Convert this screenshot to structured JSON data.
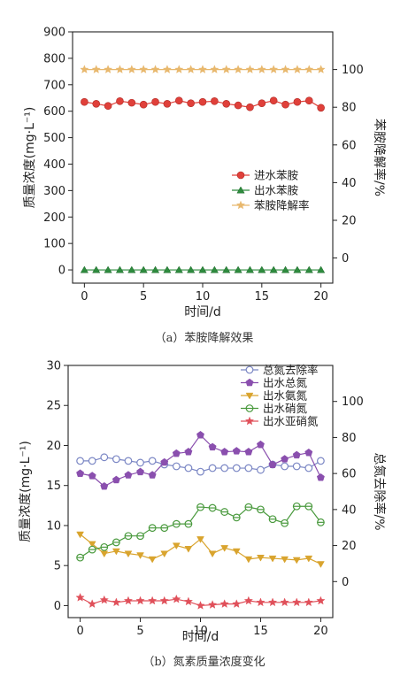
{
  "chart_data": [
    {
      "type": "line",
      "caption": "（a）苯胺降解效果",
      "xlabel": "时间/d",
      "ylabel_left": "质量浓度(mg·L⁻¹)",
      "ylabel_right": "苯胺降解率/%",
      "x_ticks": [
        0,
        5,
        10,
        15,
        20
      ],
      "xlim": [
        -1,
        21
      ],
      "left_ylim": [
        -50,
        900
      ],
      "left_ticks": [
        0,
        100,
        200,
        300,
        400,
        500,
        600,
        700,
        800,
        900
      ],
      "right_ylim": [
        -13.333,
        120
      ],
      "right_ticks": [
        0,
        20,
        40,
        60,
        80,
        100
      ],
      "legend_position": "middle-right",
      "series": [
        {
          "name": "进水苯胺",
          "axis": "left",
          "marker": "circle",
          "color": "#e0403a",
          "x": [
            0,
            1,
            2,
            3,
            4,
            5,
            6,
            7,
            8,
            9,
            10,
            11,
            12,
            13,
            14,
            15,
            16,
            17,
            18,
            19,
            20
          ],
          "values": [
            635,
            628,
            620,
            638,
            632,
            625,
            635,
            628,
            640,
            630,
            635,
            638,
            628,
            622,
            615,
            630,
            640,
            625,
            635,
            640,
            613
          ]
        },
        {
          "name": "出水苯胺",
          "axis": "left",
          "marker": "triangle",
          "color": "#2e8b3e",
          "x": [
            0,
            1,
            2,
            3,
            4,
            5,
            6,
            7,
            8,
            9,
            10,
            11,
            12,
            13,
            14,
            15,
            16,
            17,
            18,
            19,
            20
          ],
          "values": [
            0,
            0,
            0,
            0,
            0,
            0,
            0,
            0,
            0,
            0,
            0,
            0,
            0,
            0,
            0,
            0,
            0,
            0,
            0,
            0,
            0
          ]
        },
        {
          "name": "苯胺降解率",
          "axis": "right",
          "marker": "star",
          "color": "#e8b86d",
          "x": [
            0,
            1,
            2,
            3,
            4,
            5,
            6,
            7,
            8,
            9,
            10,
            11,
            12,
            13,
            14,
            15,
            16,
            17,
            18,
            19,
            20
          ],
          "values": [
            100,
            100,
            100,
            100,
            100,
            100,
            100,
            100,
            100,
            100,
            100,
            100,
            100,
            100,
            100,
            100,
            100,
            100,
            100,
            100,
            100
          ]
        }
      ]
    },
    {
      "type": "line",
      "caption": "（b）氮素质量浓度变化",
      "xlabel": "时间/d",
      "ylabel_left": "质量浓度(mg·L⁻¹)",
      "ylabel_right": "总氮去除率/%",
      "x_ticks": [
        0,
        5,
        10,
        15,
        20
      ],
      "xlim": [
        -1,
        21
      ],
      "left_ylim": [
        -1.5,
        30
      ],
      "left_ticks": [
        0,
        5,
        10,
        15,
        20,
        25,
        30
      ],
      "right_ylim": [
        -20,
        120
      ],
      "right_ticks": [
        0,
        20,
        40,
        60,
        80,
        100
      ],
      "legend_position": "top-right",
      "series": [
        {
          "name": "总氮去除率",
          "axis": "right",
          "marker": "circle-open",
          "color": "#7a86c4",
          "x": [
            0,
            1,
            2,
            3,
            4,
            5,
            6,
            7,
            8,
            9,
            10,
            11,
            12,
            13,
            14,
            15,
            16,
            17,
            18,
            19,
            20
          ],
          "values": [
            67,
            67,
            69,
            68,
            67,
            66,
            67,
            65,
            64,
            63,
            61,
            63,
            63,
            63,
            63,
            62,
            65,
            64,
            64,
            63,
            67
          ]
        },
        {
          "name": "出水总氮",
          "axis": "left",
          "marker": "pentagon",
          "color": "#8a4fae",
          "x": [
            0,
            1,
            2,
            3,
            4,
            5,
            6,
            7,
            8,
            9,
            10,
            11,
            12,
            13,
            14,
            15,
            16,
            17,
            18,
            19,
            20
          ],
          "values": [
            16.5,
            16.2,
            14.9,
            15.7,
            16.3,
            16.7,
            16.3,
            17.9,
            19.0,
            19.2,
            21.3,
            19.8,
            19.2,
            19.3,
            19.2,
            20.1,
            17.6,
            18.3,
            18.8,
            19.1,
            16.0
          ]
        },
        {
          "name": "出水氨氮",
          "axis": "left",
          "marker": "triangle-down",
          "color": "#d9a42e",
          "x": [
            0,
            1,
            2,
            3,
            4,
            5,
            6,
            7,
            8,
            9,
            10,
            11,
            12,
            13,
            14,
            15,
            16,
            17,
            18,
            19,
            20
          ],
          "values": [
            8.9,
            7.7,
            6.5,
            6.8,
            6.5,
            6.3,
            5.8,
            6.5,
            7.5,
            7.1,
            8.3,
            6.5,
            7.2,
            6.8,
            5.8,
            6.0,
            5.9,
            5.8,
            5.7,
            5.9,
            5.2
          ]
        },
        {
          "name": "出水硝氮",
          "axis": "left",
          "marker": "circle-half",
          "color": "#4a9a3e",
          "x": [
            0,
            1,
            2,
            3,
            4,
            5,
            6,
            7,
            8,
            9,
            10,
            11,
            12,
            13,
            14,
            15,
            16,
            17,
            18,
            19,
            20
          ],
          "values": [
            6.0,
            7.0,
            7.3,
            7.9,
            8.7,
            8.7,
            9.7,
            9.7,
            10.2,
            10.2,
            12.3,
            12.2,
            11.7,
            11.0,
            12.3,
            12.0,
            10.8,
            10.3,
            12.4,
            12.4,
            10.4
          ]
        },
        {
          "name": "出水亚硝氮",
          "axis": "left",
          "marker": "star",
          "color": "#e0505a",
          "x": [
            0,
            1,
            2,
            3,
            4,
            5,
            6,
            7,
            8,
            9,
            10,
            11,
            12,
            13,
            14,
            15,
            16,
            17,
            18,
            19,
            20
          ],
          "values": [
            1.0,
            0.2,
            0.7,
            0.4,
            0.6,
            0.6,
            0.6,
            0.6,
            0.8,
            0.5,
            0.0,
            0.1,
            0.2,
            0.2,
            0.6,
            0.4,
            0.4,
            0.4,
            0.4,
            0.4,
            0.6
          ]
        }
      ]
    }
  ]
}
